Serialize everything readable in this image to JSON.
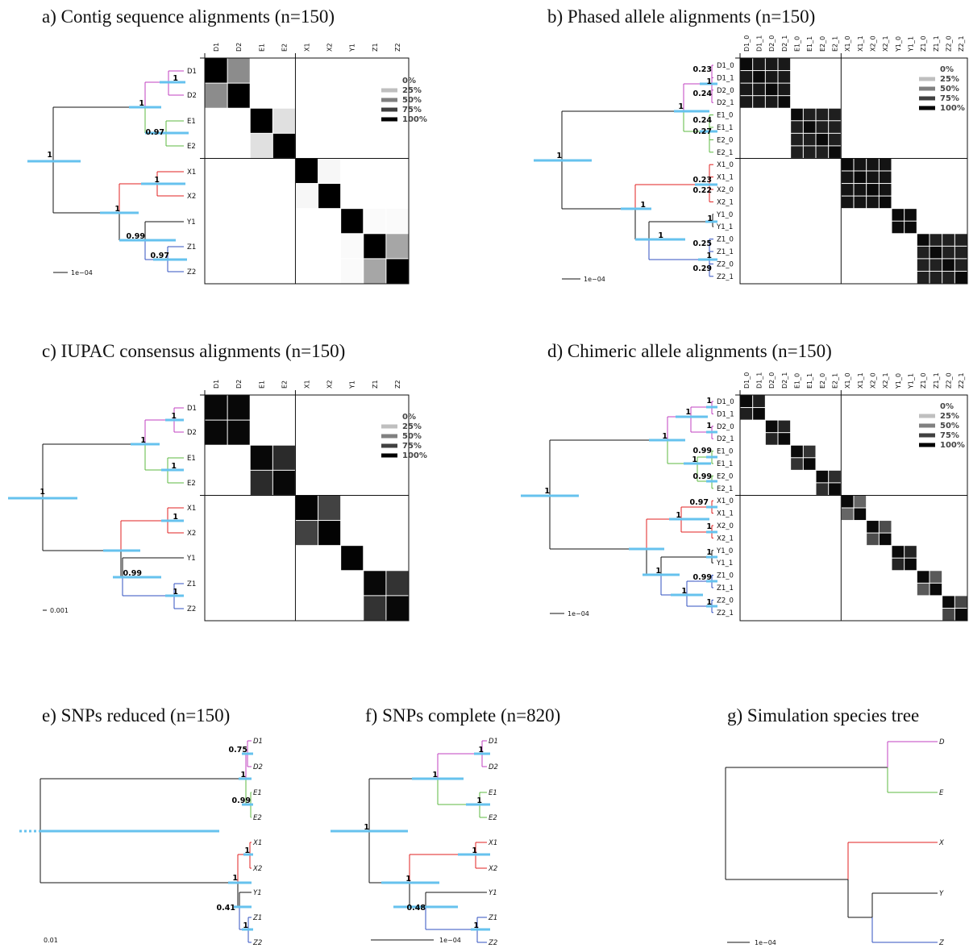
{
  "panels": {
    "a": {
      "title": "a) Contig sequence alignments (n=150)"
    },
    "b": {
      "title": "b) Phased allele alignments (n=150)"
    },
    "c": {
      "title": "c) IUPAC consensus alignments (n=150)"
    },
    "d": {
      "title": "d) Chimeric allele alignments (n=150)"
    },
    "e": {
      "title": "e) SNPs reduced (n=150)"
    },
    "f": {
      "title": "f) SNPs complete (n=820)"
    },
    "g": {
      "title": "g) Simulation species tree"
    }
  },
  "legend": [
    "0%",
    "25%",
    "50%",
    "75%",
    "100%"
  ],
  "scales": {
    "a": "1e−04",
    "b": "1e−04",
    "c": "0.001",
    "d": "1e−04",
    "e": "0.01",
    "f": "1e−04",
    "g": "1e−04"
  },
  "colors": {
    "D": "#c040c0",
    "E": "#5cb840",
    "X": "#e02020",
    "Y": "#111111",
    "Z": "#3050c0",
    "bar": "#66c2ee"
  },
  "labels": {
    "four": [
      "D1",
      "D2",
      "E1",
      "E2",
      "X1",
      "X2",
      "Y1",
      "Z1",
      "Z2"
    ],
    "alleles": [
      "D1_0",
      "D1_1",
      "D2_0",
      "D2_1",
      "E1_0",
      "E1_1",
      "E2_0",
      "E2_1",
      "X1_0",
      "X1_1",
      "X2_0",
      "X2_1",
      "Y1_0",
      "Y1_1",
      "Z1_0",
      "Z1_1",
      "Z2_0",
      "Z2_1"
    ],
    "species": [
      "D",
      "E",
      "X",
      "Y",
      "Z"
    ]
  },
  "supports": {
    "a": [
      "1",
      "0.97",
      "1",
      "1",
      "1",
      "0.99",
      "0.97",
      "1"
    ],
    "b": [
      "0.23",
      "1",
      "0.24",
      "1",
      "0.24",
      "0.27",
      "0.23",
      "0.22",
      "1",
      "1",
      "1",
      "0.25",
      "1",
      "0.29",
      "1"
    ],
    "c": [
      "1",
      "1",
      "1",
      "1",
      "1",
      "0.99",
      "1"
    ],
    "d": [
      "1",
      "1",
      "1",
      "1",
      "0.99",
      "1",
      "0.99",
      "1",
      "0.97",
      "1",
      "1",
      "1",
      "1",
      "0.99",
      "1",
      "1"
    ],
    "e": [
      "0.75",
      "1",
      "0.99",
      "1",
      "1",
      "0.41",
      "1"
    ],
    "f": [
      "1",
      "1",
      "1",
      "1",
      "1",
      "0.48",
      "1",
      "1"
    ]
  },
  "heatmaps": {
    "a": [
      [
        100,
        45,
        0,
        0,
        0,
        0,
        0,
        0,
        0
      ],
      [
        45,
        100,
        0,
        0,
        0,
        0,
        0,
        0,
        0
      ],
      [
        0,
        0,
        100,
        12,
        0,
        0,
        0,
        0,
        0
      ],
      [
        0,
        0,
        12,
        100,
        0,
        0,
        0,
        0,
        0
      ],
      [
        0,
        0,
        0,
        0,
        100,
        3,
        0,
        0,
        0
      ],
      [
        0,
        0,
        0,
        0,
        3,
        100,
        0,
        0,
        0
      ],
      [
        0,
        0,
        0,
        0,
        0,
        0,
        100,
        2,
        2
      ],
      [
        0,
        0,
        0,
        0,
        0,
        0,
        2,
        100,
        35
      ],
      [
        0,
        0,
        0,
        0,
        0,
        0,
        2,
        35,
        100
      ]
    ],
    "c": [
      [
        97,
        97,
        0,
        0,
        0,
        0,
        0,
        0,
        0
      ],
      [
        97,
        97,
        0,
        0,
        0,
        0,
        0,
        0,
        0
      ],
      [
        0,
        0,
        97,
        83,
        0,
        0,
        0,
        0,
        0
      ],
      [
        0,
        0,
        83,
        97,
        0,
        0,
        0,
        0,
        0
      ],
      [
        0,
        0,
        0,
        0,
        99,
        74,
        0,
        0,
        0
      ],
      [
        0,
        0,
        0,
        0,
        74,
        99,
        0,
        0,
        0
      ],
      [
        0,
        0,
        0,
        0,
        0,
        0,
        99,
        0,
        0
      ],
      [
        0,
        0,
        0,
        0,
        0,
        0,
        0,
        97,
        80
      ],
      [
        0,
        0,
        0,
        0,
        0,
        0,
        0,
        80,
        97
      ]
    ]
  }
}
